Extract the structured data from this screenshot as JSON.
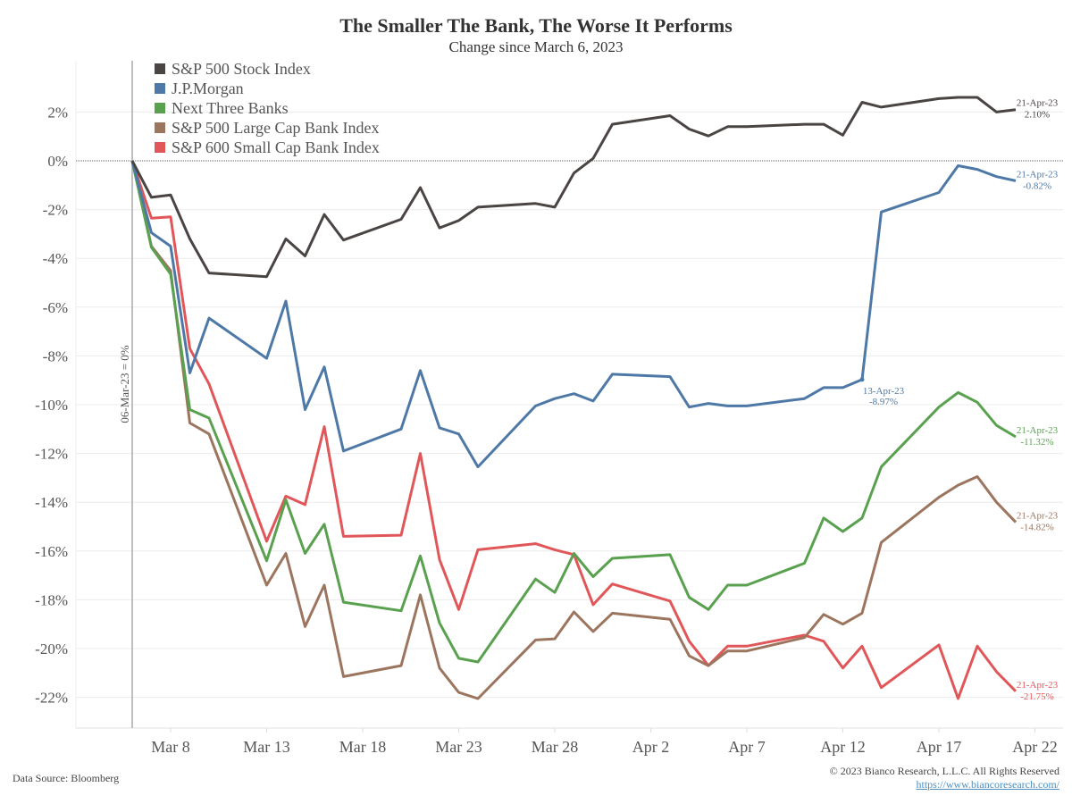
{
  "chart_data": {
    "type": "line",
    "title": "The Smaller The Bank, The Worse It Performs",
    "subtitle": "Change since March 6, 2023",
    "xlabel": "",
    "ylabel": "",
    "x_unit": "days since 06-Mar-23 (trading days)",
    "x": [
      0,
      1,
      2,
      3,
      4,
      7,
      8,
      9,
      10,
      11,
      14,
      15,
      16,
      17,
      18,
      21,
      22,
      23,
      24,
      25,
      28,
      29,
      30,
      31,
      32,
      35,
      36,
      37,
      38,
      39,
      42,
      43,
      44,
      45,
      46
    ],
    "xlim": [
      -3,
      48
    ],
    "x_ticks": [
      {
        "day": 2,
        "label": "Mar 8"
      },
      {
        "day": 7,
        "label": "Mar 13"
      },
      {
        "day": 12,
        "label": "Mar 18"
      },
      {
        "day": 17,
        "label": "Mar 23"
      },
      {
        "day": 22,
        "label": "Mar 28"
      },
      {
        "day": 27,
        "label": "Apr 2"
      },
      {
        "day": 32,
        "label": "Apr 7"
      },
      {
        "day": 37,
        "label": "Apr 12"
      },
      {
        "day": 42,
        "label": "Apr 17"
      },
      {
        "day": 47,
        "label": "Apr 22"
      }
    ],
    "ylim": [
      -23.3,
      3.3
    ],
    "y_ticks": [
      {
        "value": 2,
        "label": "2%"
      },
      {
        "value": 0,
        "label": "0%"
      },
      {
        "value": -2,
        "label": "-2%"
      },
      {
        "value": -4,
        "label": "-4%"
      },
      {
        "value": -6,
        "label": "-6%"
      },
      {
        "value": -8,
        "label": "-8%"
      },
      {
        "value": -10,
        "label": "-10%"
      },
      {
        "value": -12,
        "label": "-12%"
      },
      {
        "value": -14,
        "label": "-14%"
      },
      {
        "value": -16,
        "label": "-16%"
      },
      {
        "value": -18,
        "label": "-18%"
      },
      {
        "value": -20,
        "label": "-20%"
      },
      {
        "value": -22,
        "label": "-22%"
      }
    ],
    "grid": true,
    "legend_position": "top-left",
    "baseline_label": "06-Mar-23 = 0%",
    "series": [
      {
        "name": "S&P 500 Stock Index",
        "color": "#4a4443",
        "values": [
          0,
          -1.5,
          -1.4,
          -3.2,
          -4.6,
          -4.75,
          -3.2,
          -3.9,
          -2.2,
          -3.25,
          -2.4,
          -1.1,
          -2.75,
          -2.45,
          -1.9,
          -1.75,
          -1.9,
          -0.5,
          0.1,
          1.5,
          1.85,
          1.3,
          1.02,
          1.4,
          1.4,
          1.5,
          1.5,
          1.05,
          2.4,
          2.2,
          2.55,
          2.6,
          2.6,
          2.0,
          2.1
        ],
        "end_label": {
          "date": "21-Apr-23",
          "value": "2.10%"
        }
      },
      {
        "name": "J.P.Morgan",
        "color": "#4e79a7",
        "values": [
          0,
          -2.95,
          -3.5,
          -8.7,
          -6.45,
          -8.1,
          -5.75,
          -10.2,
          -8.45,
          -11.9,
          -11.0,
          -8.6,
          -10.95,
          -11.2,
          -12.55,
          -10.05,
          -9.75,
          -9.55,
          -9.85,
          -8.75,
          -8.85,
          -10.1,
          -9.95,
          -10.05,
          -10.05,
          -9.75,
          -9.3,
          -9.3,
          -8.97,
          -2.1,
          -1.3,
          -0.2,
          -0.35,
          -0.65,
          -0.82
        ],
        "end_label": {
          "date": "21-Apr-23",
          "value": "-0.82%"
        },
        "mid_label": {
          "date": "13-Apr-23",
          "value": "-8.97%",
          "day": 38
        }
      },
      {
        "name": "Next Three Banks",
        "color": "#59a14f",
        "values": [
          0,
          -3.55,
          -4.65,
          -10.2,
          -10.55,
          -16.4,
          -13.9,
          -16.1,
          -14.9,
          -18.1,
          -18.45,
          -16.2,
          -18.95,
          -20.4,
          -20.55,
          -17.15,
          -17.7,
          -16.1,
          -17.05,
          -16.3,
          -16.15,
          -17.9,
          -18.4,
          -17.4,
          -17.4,
          -16.5,
          -14.65,
          -15.2,
          -14.65,
          -12.55,
          -10.1,
          -9.5,
          -9.9,
          -10.85,
          -11.32
        ],
        "end_label": {
          "date": "21-Apr-23",
          "value": "-11.32%"
        }
      },
      {
        "name": "S&P 500 Large Cap Bank Index",
        "color": "#9c755f",
        "values": [
          0,
          -3.5,
          -4.5,
          -10.75,
          -11.2,
          -17.4,
          -16.1,
          -19.1,
          -17.4,
          -21.15,
          -20.7,
          -17.8,
          -20.8,
          -21.8,
          -22.05,
          -19.65,
          -19.6,
          -18.5,
          -19.3,
          -18.55,
          -18.8,
          -20.3,
          -20.7,
          -20.1,
          -20.1,
          -19.55,
          -18.6,
          -19.0,
          -18.55,
          -15.65,
          -13.8,
          -13.3,
          -12.95,
          -14.0,
          -14.82
        ],
        "end_label": {
          "date": "21-Apr-23",
          "value": "-14.82%"
        }
      },
      {
        "name": "S&P 600 Small Cap Bank Index",
        "color": "#e15759",
        "values": [
          0,
          -2.35,
          -2.3,
          -7.7,
          -9.15,
          -15.6,
          -13.75,
          -14.1,
          -10.9,
          -15.4,
          -15.35,
          -12.0,
          -16.35,
          -18.4,
          -15.95,
          -15.7,
          -15.95,
          -16.15,
          -18.2,
          -17.35,
          -18.05,
          -19.7,
          -20.7,
          -19.9,
          -19.9,
          -19.45,
          -19.7,
          -20.8,
          -19.9,
          -21.6,
          -19.85,
          -22.05,
          -19.9,
          -20.95,
          -21.75
        ],
        "end_label": {
          "date": "21-Apr-23",
          "value": "-21.75%"
        }
      }
    ]
  },
  "footer": {
    "source": "Data Source: Bloomberg",
    "copyright": "© 2023 Bianco Research, L.L.C. All Rights Reserved",
    "url": "https://www.biancoresearch.com/"
  }
}
